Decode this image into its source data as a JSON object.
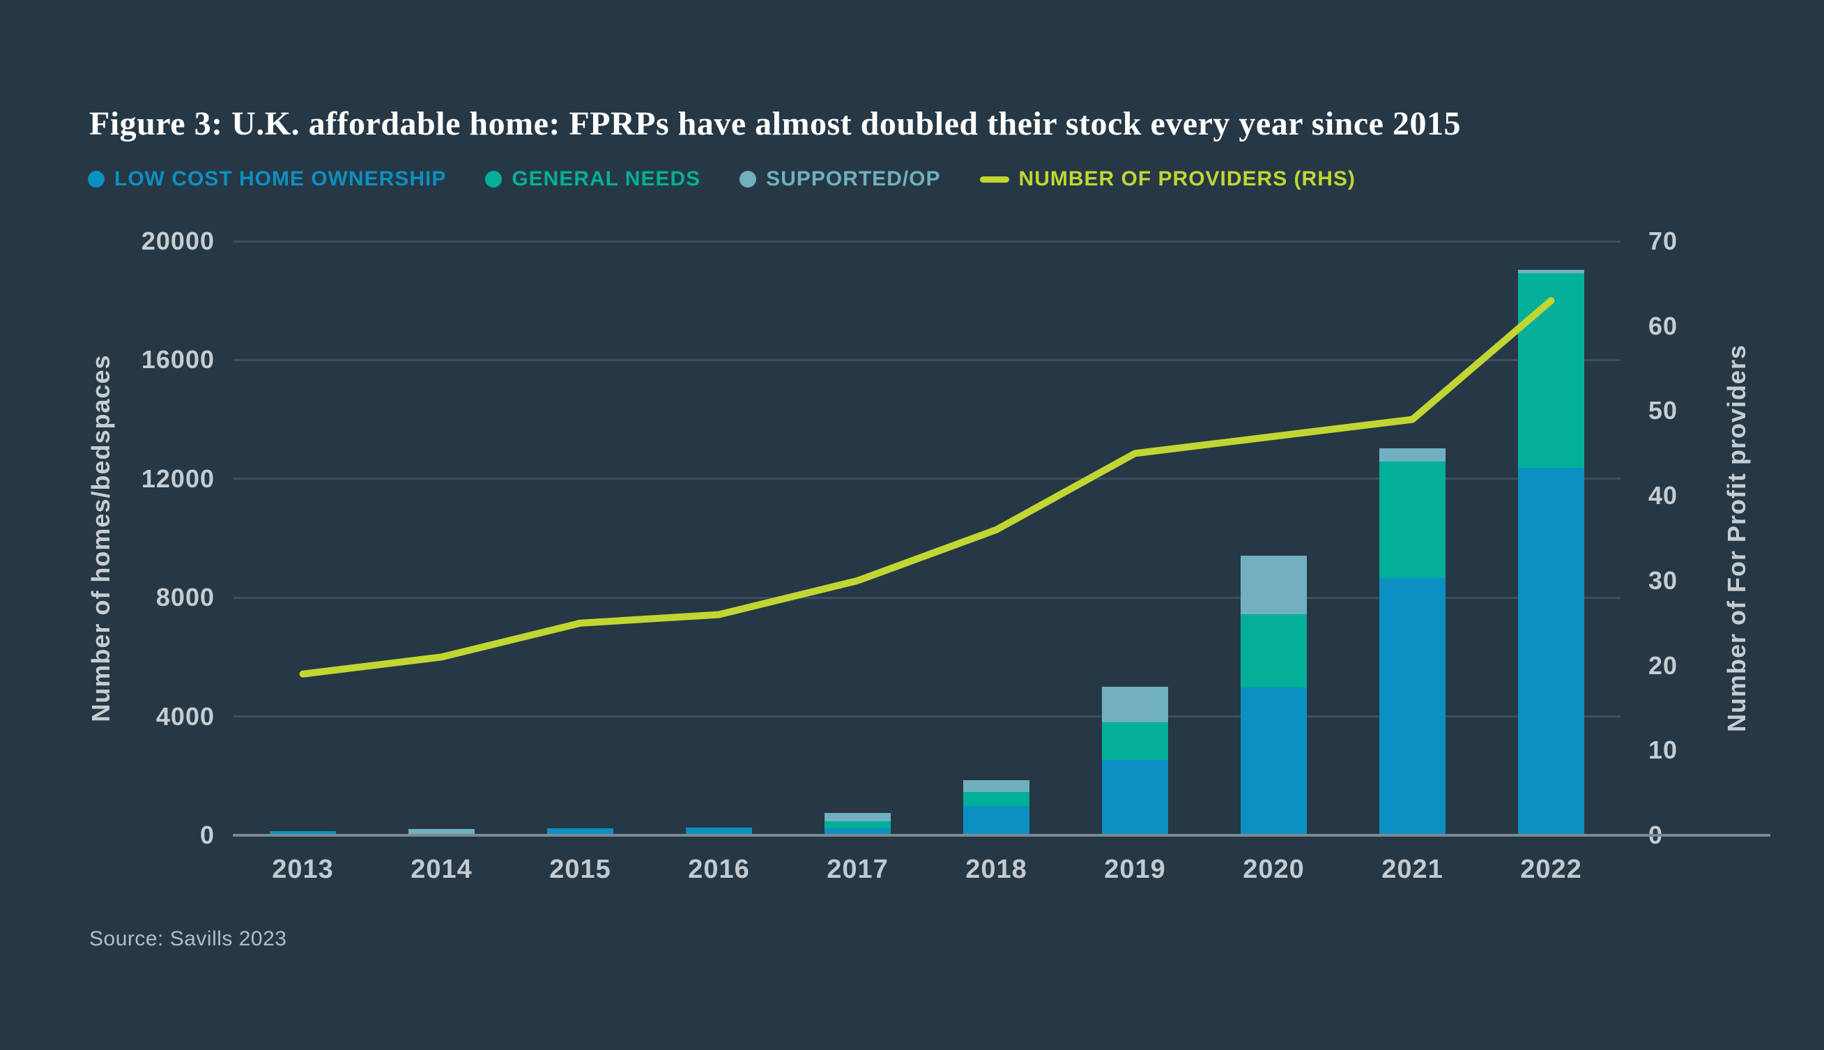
{
  "title": "Figure 3: U.K. affordable home: FPRPs have almost doubled their stock every year since 2015",
  "source": "Source: Savills 2023",
  "legend": [
    {
      "label": "LOW COST HOME OWNERSHIP",
      "color": "#0b90c1",
      "swatch": "dot"
    },
    {
      "label": "GENERAL NEEDS",
      "color": "#03af99",
      "swatch": "dot"
    },
    {
      "label": "SUPPORTED/OP",
      "color": "#70b0c0",
      "swatch": "dot"
    },
    {
      "label": "NUMBER OF PROVIDERS (RHS)",
      "color": "#c1d633",
      "swatch": "line"
    }
  ],
  "colors": {
    "background": "#263845",
    "grid": "#3e4f5c",
    "axis_line": "#7d8993",
    "tick_text": "#c6cdd2",
    "title_text": "#ffffff",
    "source_text": "#b3bdc4"
  },
  "chart_data": {
    "type": "bar",
    "subtype": "stacked-bar-with-line-overlay",
    "categories": [
      "2013",
      "2014",
      "2015",
      "2016",
      "2017",
      "2018",
      "2019",
      "2020",
      "2021",
      "2022"
    ],
    "series": [
      {
        "name": "LOW COST HOME OWNERSHIP",
        "color": "#0b90c1",
        "values": [
          140,
          30,
          240,
          250,
          230,
          980,
          2530,
          4980,
          8660,
          12370
        ]
      },
      {
        "name": "GENERAL NEEDS",
        "color": "#03af99",
        "values": [
          0,
          0,
          0,
          0,
          250,
          480,
          1270,
          2460,
          3920,
          6550
        ]
      },
      {
        "name": "SUPPORTED/OP",
        "color": "#70b0c0",
        "values": [
          0,
          170,
          0,
          0,
          260,
          390,
          1200,
          1970,
          450,
          120
        ]
      }
    ],
    "line_series": {
      "name": "NUMBER OF PROVIDERS (RHS)",
      "color": "#c1d633",
      "axis": "right",
      "values": [
        19,
        21,
        25,
        26,
        30,
        36,
        45,
        47,
        49,
        63
      ]
    },
    "left_axis": {
      "label": "Number of homes/bedspaces",
      "ticks": [
        0,
        4000,
        8000,
        12000,
        16000,
        20000
      ],
      "max": 20000
    },
    "right_axis": {
      "label": "Number of For Profit providers",
      "ticks": [
        0,
        10,
        20,
        30,
        40,
        50,
        60,
        70
      ],
      "max": 70
    },
    "grid": true,
    "legend_position": "top"
  }
}
